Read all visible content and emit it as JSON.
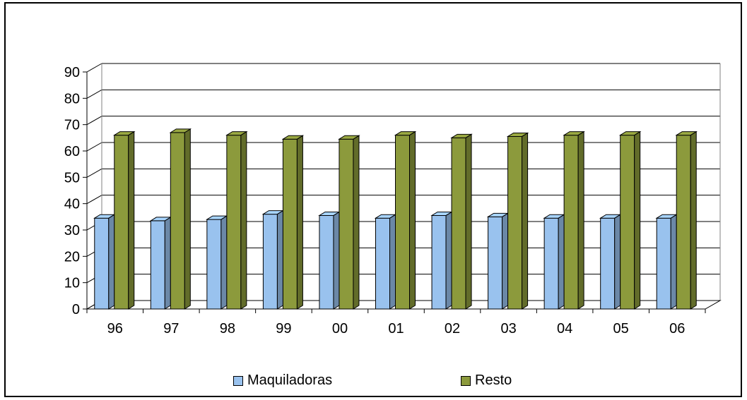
{
  "chart_data": {
    "type": "bar",
    "categories": [
      "96",
      "97",
      "98",
      "99",
      "00",
      "01",
      "02",
      "03",
      "04",
      "05",
      "06"
    ],
    "series": [
      {
        "name": "Maquiladoras",
        "values": [
          34.5,
          33.5,
          34,
          36,
          35.5,
          34.5,
          35.5,
          35,
          34.5,
          34.5,
          34.5
        ]
      },
      {
        "name": "Resto",
        "values": [
          66,
          67,
          66,
          64.5,
          64.5,
          66,
          65,
          65.5,
          66,
          66,
          66
        ]
      }
    ],
    "ylim": [
      0,
      90
    ],
    "yticks": [
      "0",
      "10",
      "20",
      "30",
      "40",
      "50",
      "60",
      "70",
      "80",
      "90"
    ],
    "grid": true,
    "legend_position": "bottom",
    "colors": {
      "Maquiladoras": "#99c2ee",
      "Resto": "#8c9a3c"
    }
  }
}
